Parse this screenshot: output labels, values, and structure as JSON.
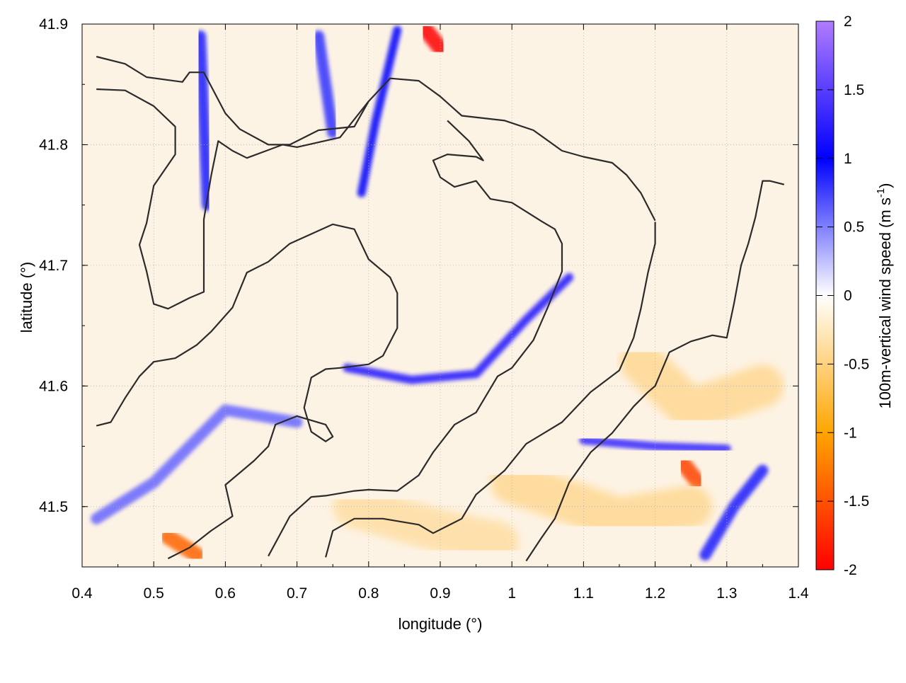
{
  "chart_data": {
    "type": "heatmap",
    "title": "",
    "xlabel": "longitude (°)",
    "ylabel": "latitude (°)",
    "xlim": [
      0.4,
      1.4
    ],
    "ylim": [
      41.45,
      41.9
    ],
    "x_ticks": [
      "0.4",
      "0.5",
      "0.6",
      "0.7",
      "0.8",
      "0.9",
      "1",
      "1.1",
      "1.2",
      "1.3",
      "1.4"
    ],
    "y_ticks": [
      "41.5",
      "41.6",
      "41.7",
      "41.8",
      "41.9"
    ],
    "grid": true,
    "colorbar": {
      "label": "100m-vertical wind speed (m s",
      "label_sup": "-1",
      "label_close": ")",
      "range": [
        -2,
        2
      ],
      "ticks": [
        "2",
        "1.5",
        "1",
        "0.5",
        "0",
        "-0.5",
        "-1",
        "-1.5",
        "-2"
      ],
      "colors": {
        "top": "#b07bff",
        "high": "#0000ff",
        "zero": "#ffffff",
        "low": "#ffa500",
        "bottom": "#ff0000"
      }
    },
    "features": [
      {
        "name": "updraft band",
        "points": [
          [
            0.77,
            41.615
          ],
          [
            0.86,
            41.605
          ],
          [
            0.95,
            41.61
          ],
          [
            1.02,
            41.655
          ],
          [
            1.08,
            41.69
          ]
        ],
        "value": 1.2
      },
      {
        "name": "updraft channel",
        "points": [
          [
            0.565,
            41.89
          ],
          [
            0.57,
            41.82
          ],
          [
            0.575,
            41.75
          ]
        ],
        "value": 0.9
      },
      {
        "name": "updraft channel",
        "points": [
          [
            0.73,
            41.89
          ],
          [
            0.75,
            41.81
          ]
        ],
        "value": 0.8
      },
      {
        "name": "updraft channel",
        "points": [
          [
            0.84,
            41.895
          ],
          [
            0.81,
            41.82
          ],
          [
            0.79,
            41.76
          ]
        ],
        "value": 1.0
      },
      {
        "name": "updraft channel",
        "points": [
          [
            0.42,
            41.49
          ],
          [
            0.5,
            41.52
          ],
          [
            0.6,
            41.58
          ],
          [
            0.7,
            41.57
          ]
        ],
        "value": 0.6
      },
      {
        "name": "updraft channel",
        "points": [
          [
            1.27,
            41.46
          ],
          [
            1.31,
            41.5
          ],
          [
            1.35,
            41.53
          ]
        ],
        "value": 0.9
      },
      {
        "name": "updraft line",
        "points": [
          [
            1.1,
            41.555
          ],
          [
            1.2,
            41.55
          ],
          [
            1.3,
            41.548
          ]
        ],
        "value": 1.3
      },
      {
        "name": "downdraft patch",
        "points": [
          [
            0.88,
            41.895
          ],
          [
            0.9,
            41.88
          ]
        ],
        "value": -2.0
      },
      {
        "name": "downdraft patch",
        "points": [
          [
            1.24,
            41.535
          ],
          [
            1.26,
            41.52
          ]
        ],
        "value": -1.6
      },
      {
        "name": "downdraft patch",
        "points": [
          [
            0.52,
            41.475
          ],
          [
            0.56,
            41.46
          ]
        ],
        "value": -1.4
      },
      {
        "name": "downdraft field",
        "points": [
          [
            1.0,
            41.52
          ],
          [
            1.15,
            41.49
          ],
          [
            1.25,
            41.5
          ]
        ],
        "value": -0.6
      },
      {
        "name": "downdraft field",
        "points": [
          [
            1.18,
            41.62
          ],
          [
            1.25,
            41.58
          ],
          [
            1.35,
            41.6
          ]
        ],
        "value": -0.6
      },
      {
        "name": "downdraft field",
        "points": [
          [
            0.78,
            41.5
          ],
          [
            0.9,
            41.48
          ],
          [
            0.98,
            41.47
          ]
        ],
        "value": -0.5
      }
    ],
    "contours": [
      [
        [
          0.42,
          41.873
        ],
        [
          0.46,
          41.867
        ],
        [
          0.49,
          41.856
        ],
        [
          0.54,
          41.852
        ],
        [
          0.55,
          41.86
        ],
        [
          0.57,
          41.86
        ],
        [
          0.6,
          41.826
        ],
        [
          0.62,
          41.813
        ],
        [
          0.66,
          41.8
        ],
        [
          0.69,
          41.8
        ],
        [
          0.73,
          41.812
        ],
        [
          0.78,
          41.815
        ],
        [
          0.8,
          41.836
        ],
        [
          0.83,
          41.855
        ],
        [
          0.87,
          41.853
        ],
        [
          0.9,
          41.84
        ],
        [
          0.93,
          41.824
        ],
        [
          0.99,
          41.82
        ],
        [
          1.03,
          41.812
        ],
        [
          1.07,
          41.795
        ],
        [
          1.1,
          41.79
        ],
        [
          1.14,
          41.785
        ],
        [
          1.16,
          41.775
        ],
        [
          1.18,
          41.76
        ],
        [
          1.2,
          41.737
        ]
      ],
      [
        [
          0.42,
          41.846
        ],
        [
          0.46,
          41.845
        ],
        [
          0.5,
          41.832
        ],
        [
          0.53,
          41.815
        ],
        [
          0.53,
          41.792
        ],
        [
          0.5,
          41.766
        ],
        [
          0.49,
          41.735
        ],
        [
          0.48,
          41.717
        ],
        [
          0.49,
          41.695
        ],
        [
          0.5,
          41.668
        ],
        [
          0.52,
          41.664
        ],
        [
          0.55,
          41.673
        ],
        [
          0.57,
          41.678
        ],
        [
          0.57,
          41.7
        ],
        [
          0.57,
          41.738
        ],
        [
          0.58,
          41.774
        ],
        [
          0.59,
          41.803
        ],
        [
          0.61,
          41.795
        ],
        [
          0.63,
          41.789
        ],
        [
          0.68,
          41.8
        ],
        [
          0.7,
          41.798
        ],
        [
          0.76,
          41.806
        ],
        [
          0.8,
          41.836
        ]
      ],
      [
        [
          0.42,
          41.567
        ],
        [
          0.44,
          41.57
        ],
        [
          0.46,
          41.59
        ],
        [
          0.48,
          41.608
        ],
        [
          0.5,
          41.62
        ],
        [
          0.53,
          41.623
        ],
        [
          0.56,
          41.634
        ],
        [
          0.58,
          41.645
        ],
        [
          0.61,
          41.665
        ],
        [
          0.63,
          41.694
        ],
        [
          0.66,
          41.703
        ],
        [
          0.69,
          41.718
        ],
        [
          0.75,
          41.734
        ],
        [
          0.78,
          41.73
        ],
        [
          0.8,
          41.705
        ],
        [
          0.83,
          41.69
        ],
        [
          0.84,
          41.677
        ],
        [
          0.84,
          41.648
        ],
        [
          0.82,
          41.625
        ],
        [
          0.8,
          41.618
        ],
        [
          0.76,
          41.615
        ],
        [
          0.74,
          41.614
        ],
        [
          0.72,
          41.607
        ],
        [
          0.71,
          41.582
        ],
        [
          0.72,
          41.562
        ],
        [
          0.74,
          41.554
        ],
        [
          0.75,
          41.558
        ],
        [
          0.74,
          41.568
        ],
        [
          0.7,
          41.575
        ],
        [
          0.67,
          41.568
        ],
        [
          0.66,
          41.55
        ],
        [
          0.64,
          41.538
        ],
        [
          0.6,
          41.518
        ],
        [
          0.61,
          41.492
        ],
        [
          0.58,
          41.48
        ],
        [
          0.55,
          41.466
        ],
        [
          0.52,
          41.457
        ]
      ],
      [
        [
          0.66,
          41.459
        ],
        [
          0.69,
          41.492
        ],
        [
          0.72,
          41.508
        ],
        [
          0.74,
          41.509
        ],
        [
          0.78,
          41.513
        ],
        [
          0.8,
          41.514
        ],
        [
          0.84,
          41.513
        ],
        [
          0.87,
          41.526
        ],
        [
          0.89,
          41.545
        ],
        [
          0.92,
          41.568
        ],
        [
          0.95,
          41.578
        ],
        [
          0.98,
          41.608
        ],
        [
          1.0,
          41.615
        ],
        [
          1.03,
          41.638
        ],
        [
          1.05,
          41.665
        ],
        [
          1.07,
          41.695
        ],
        [
          1.07,
          41.718
        ],
        [
          1.06,
          41.73
        ],
        [
          1.04,
          41.737
        ],
        [
          1.0,
          41.752
        ],
        [
          0.97,
          41.755
        ],
        [
          0.95,
          41.77
        ],
        [
          0.92,
          41.765
        ],
        [
          0.9,
          41.773
        ],
        [
          0.89,
          41.787
        ],
        [
          0.91,
          41.792
        ],
        [
          0.95,
          41.79
        ],
        [
          0.96,
          41.787
        ],
        [
          0.94,
          41.803
        ],
        [
          0.91,
          41.82
        ]
      ],
      [
        [
          0.74,
          41.458
        ],
        [
          0.75,
          41.48
        ],
        [
          0.78,
          41.49
        ],
        [
          0.82,
          41.49
        ],
        [
          0.87,
          41.485
        ],
        [
          0.89,
          41.478
        ],
        [
          0.93,
          41.49
        ],
        [
          0.95,
          41.51
        ],
        [
          0.99,
          41.53
        ],
        [
          1.02,
          41.552
        ],
        [
          1.07,
          41.57
        ],
        [
          1.11,
          41.595
        ],
        [
          1.15,
          41.613
        ],
        [
          1.17,
          41.64
        ],
        [
          1.18,
          41.664
        ],
        [
          1.19,
          41.694
        ],
        [
          1.2,
          41.718
        ],
        [
          1.2,
          41.736
        ]
      ],
      [
        [
          1.02,
          41.455
        ],
        [
          1.04,
          41.473
        ],
        [
          1.06,
          41.49
        ],
        [
          1.08,
          41.52
        ],
        [
          1.11,
          41.545
        ],
        [
          1.14,
          41.561
        ],
        [
          1.17,
          41.583
        ],
        [
          1.19,
          41.595
        ],
        [
          1.2,
          41.6
        ],
        [
          1.22,
          41.628
        ],
        [
          1.25,
          41.637
        ],
        [
          1.28,
          41.642
        ],
        [
          1.3,
          41.64
        ],
        [
          1.31,
          41.668
        ],
        [
          1.32,
          41.7
        ],
        [
          1.33,
          41.718
        ],
        [
          1.34,
          41.74
        ],
        [
          1.35,
          41.77
        ],
        [
          1.36,
          41.77
        ],
        [
          1.38,
          41.767
        ]
      ]
    ],
    "annotations": []
  }
}
